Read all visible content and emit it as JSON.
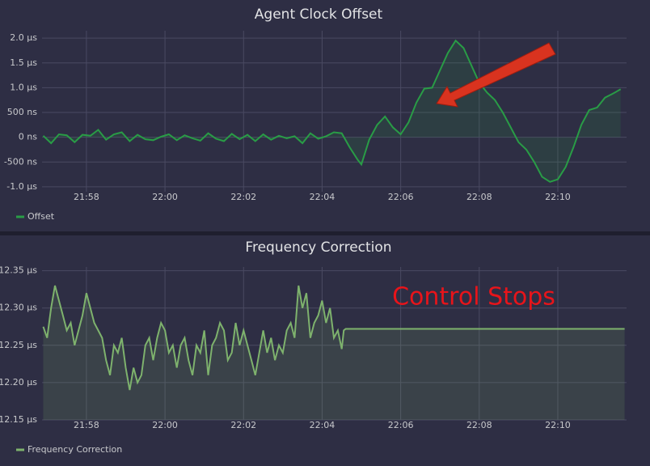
{
  "chart_data": [
    {
      "type": "line",
      "title": "Agent Clock Offset",
      "x": [
        1316.9,
        1317.1,
        1317.3,
        1317.5,
        1317.7,
        1317.9,
        1318.1,
        1318.3,
        1318.5,
        1318.7,
        1318.9,
        1319.1,
        1319.3,
        1319.5,
        1319.7,
        1319.9,
        1320.1,
        1320.3,
        1320.5,
        1320.7,
        1320.9,
        1321.1,
        1321.3,
        1321.5,
        1321.7,
        1321.9,
        1322.1,
        1322.3,
        1322.5,
        1322.7,
        1322.9,
        1323.1,
        1323.3,
        1323.5,
        1323.7,
        1323.9,
        1324.1,
        1324.3,
        1324.5,
        1324.7,
        1324.9,
        1325.0,
        1325.2,
        1325.4,
        1325.6,
        1325.8,
        1326.0,
        1326.2,
        1326.4,
        1326.6,
        1326.8,
        1327.0,
        1327.2,
        1327.4,
        1327.6,
        1327.8,
        1328.0,
        1328.2,
        1328.4,
        1328.6,
        1328.8,
        1329.0,
        1329.2,
        1329.4,
        1329.6,
        1329.8,
        1330.0,
        1330.2,
        1330.4,
        1330.6,
        1330.8,
        1331.0,
        1331.2,
        1331.4,
        1331.6
      ],
      "series": [
        {
          "name": "Offset",
          "color": "#299c46",
          "values": [
            30,
            -120,
            60,
            40,
            -100,
            50,
            30,
            150,
            -50,
            60,
            100,
            -80,
            50,
            -40,
            -60,
            10,
            60,
            -60,
            40,
            -20,
            -70,
            80,
            -30,
            -80,
            70,
            -40,
            50,
            -80,
            60,
            -50,
            30,
            -20,
            20,
            -120,
            80,
            -30,
            20,
            100,
            80,
            -200,
            -450,
            -550,
            -50,
            250,
            420,
            200,
            60,
            300,
            700,
            980,
            1000,
            1350,
            1700,
            1950,
            1800,
            1450,
            1100,
            900,
            750,
            500,
            200,
            -100,
            -250,
            -500,
            -800,
            -900,
            -850,
            -600,
            -200,
            250,
            550,
            600,
            800,
            880,
            970
          ]
        }
      ],
      "xlim": [
        1316.87,
        1331.75
      ],
      "xticks": [
        {
          "value": 1318,
          "label": "21:58"
        },
        {
          "value": 1320,
          "label": "22:00"
        },
        {
          "value": 1322,
          "label": "22:02"
        },
        {
          "value": 1324,
          "label": "22:04"
        },
        {
          "value": 1326,
          "label": "22:06"
        },
        {
          "value": 1328,
          "label": "22:08"
        },
        {
          "value": 1330,
          "label": "22:10"
        }
      ],
      "ylim": [
        -1100,
        2150
      ],
      "yticks": [
        {
          "value": -1000,
          "label": "-1.0 µs"
        },
        {
          "value": -500,
          "label": "-500 ns"
        },
        {
          "value": 0,
          "label": "0 ns"
        },
        {
          "value": 500,
          "label": "500 ns"
        },
        {
          "value": 1000,
          "label": "1.0 µs"
        },
        {
          "value": 1500,
          "label": "1.5 µs"
        },
        {
          "value": 2000,
          "label": "2.0 µs"
        }
      ],
      "grid": true
    },
    {
      "type": "line",
      "title": "Frequency Correction",
      "annotation": "Control Stops",
      "x": [
        1316.9,
        1317.0,
        1317.1,
        1317.2,
        1317.4,
        1317.5,
        1317.6,
        1317.7,
        1317.9,
        1318.0,
        1318.2,
        1318.3,
        1318.4,
        1318.5,
        1318.6,
        1318.7,
        1318.8,
        1318.9,
        1319.0,
        1319.1,
        1319.2,
        1319.3,
        1319.4,
        1319.5,
        1319.6,
        1319.7,
        1319.8,
        1319.9,
        1320.0,
        1320.1,
        1320.2,
        1320.3,
        1320.4,
        1320.5,
        1320.6,
        1320.7,
        1320.8,
        1320.9,
        1321.0,
        1321.1,
        1321.2,
        1321.3,
        1321.4,
        1321.5,
        1321.6,
        1321.7,
        1321.8,
        1321.9,
        1322.0,
        1322.1,
        1322.2,
        1322.3,
        1322.4,
        1322.5,
        1322.6,
        1322.7,
        1322.8,
        1322.9,
        1323.0,
        1323.1,
        1323.2,
        1323.3,
        1323.4,
        1323.5,
        1323.6,
        1323.7,
        1323.8,
        1323.9,
        1324.0,
        1324.1,
        1324.2,
        1324.3,
        1324.4,
        1324.5,
        1324.55,
        1324.6,
        1331.7
      ],
      "series": [
        {
          "name": "Frequency Correction",
          "color": "#7eb26d",
          "values": [
            12.275,
            12.26,
            12.3,
            12.33,
            12.29,
            12.27,
            12.28,
            12.25,
            12.29,
            12.32,
            12.28,
            12.27,
            12.26,
            12.23,
            12.21,
            12.25,
            12.24,
            12.26,
            12.22,
            12.19,
            12.22,
            12.2,
            12.21,
            12.25,
            12.26,
            12.23,
            12.26,
            12.28,
            12.27,
            12.24,
            12.25,
            12.22,
            12.25,
            12.26,
            12.23,
            12.21,
            12.25,
            12.24,
            12.27,
            12.21,
            12.25,
            12.26,
            12.28,
            12.27,
            12.23,
            12.24,
            12.28,
            12.25,
            12.27,
            12.25,
            12.23,
            12.21,
            12.24,
            12.27,
            12.24,
            12.26,
            12.23,
            12.25,
            12.24,
            12.27,
            12.28,
            12.26,
            12.33,
            12.3,
            12.32,
            12.26,
            12.28,
            12.29,
            12.31,
            12.28,
            12.3,
            12.26,
            12.27,
            12.245,
            12.27,
            12.272,
            12.272
          ]
        }
      ],
      "xlim": [
        1316.87,
        1331.75
      ],
      "xticks": [
        {
          "value": 1318,
          "label": "21:58"
        },
        {
          "value": 1320,
          "label": "22:00"
        },
        {
          "value": 1322,
          "label": "22:02"
        },
        {
          "value": 1324,
          "label": "22:04"
        },
        {
          "value": 1326,
          "label": "22:06"
        },
        {
          "value": 1328,
          "label": "22:08"
        },
        {
          "value": 1330,
          "label": "22:10"
        }
      ],
      "ylim": [
        12.15,
        12.355
      ],
      "yticks": [
        {
          "value": 12.15,
          "label": "12.15 µs"
        },
        {
          "value": 12.2,
          "label": "12.20 µs"
        },
        {
          "value": 12.25,
          "label": "12.25 µs"
        },
        {
          "value": 12.3,
          "label": "12.30 µs"
        },
        {
          "value": 12.35,
          "label": "12.35 µs"
        }
      ],
      "grid": true
    }
  ]
}
